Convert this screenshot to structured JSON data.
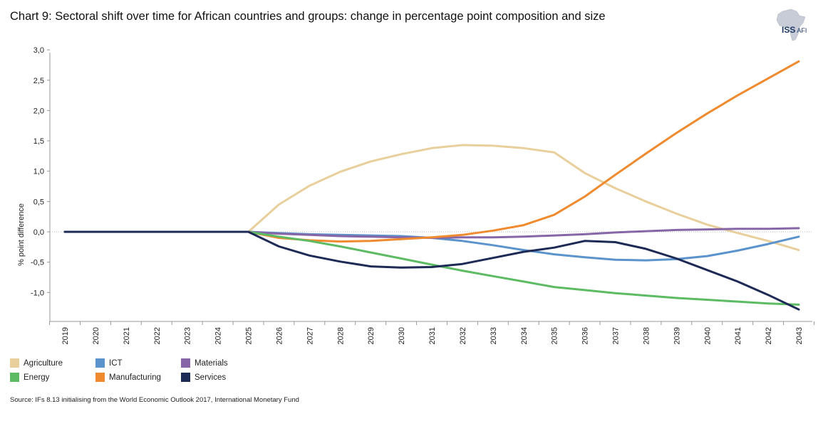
{
  "header": {
    "title": "Chart 9: Sectoral shift over time for African countries and groups: change in percentage point composition and size",
    "logo_main": "ISS",
    "logo_sub": "AFI"
  },
  "source": "Source: IFs 8.13 initialising from the World Economic Outlook 2017, International Monetary Fund",
  "chart_data": {
    "type": "line",
    "title": "Chart 9: Sectoral shift over time for African countries and groups: change in percentage point composition and size",
    "xlabel": "",
    "ylabel": "% point difference",
    "ylim": [
      -1.3,
      3.0
    ],
    "yticks": [
      -1.0,
      -0.5,
      0.0,
      0.5,
      1.0,
      1.5,
      2.0,
      2.5,
      3.0
    ],
    "ytick_labels": [
      "-1,0",
      "-0,5",
      "0,0",
      "0,5",
      "1,0",
      "1,5",
      "2,0",
      "2,5",
      "3,0"
    ],
    "x": [
      "2019",
      "2020",
      "2021",
      "2022",
      "2023",
      "2024",
      "2025",
      "2026",
      "2027",
      "2028",
      "2029",
      "2030",
      "2031",
      "2032",
      "2033",
      "2034",
      "2035",
      "2036",
      "2037",
      "2038",
      "2039",
      "2040",
      "2041",
      "2042",
      "2043"
    ],
    "series": [
      {
        "name": "Agriculture",
        "color": "#e8cf9c",
        "values": [
          0,
          0,
          0,
          0,
          0,
          0,
          0,
          0.45,
          0.76,
          0.99,
          1.16,
          1.28,
          1.38,
          1.43,
          1.42,
          1.38,
          1.31,
          0.97,
          0.72,
          0.5,
          0.3,
          0.12,
          -0.02,
          -0.15,
          -0.3
        ]
      },
      {
        "name": "ICT",
        "color": "#5b93cc",
        "values": [
          0,
          0,
          0,
          0,
          0,
          0,
          0,
          -0.02,
          -0.04,
          -0.05,
          -0.06,
          -0.07,
          -0.1,
          -0.15,
          -0.22,
          -0.3,
          -0.37,
          -0.42,
          -0.46,
          -0.47,
          -0.45,
          -0.4,
          -0.31,
          -0.2,
          -0.08
        ]
      },
      {
        "name": "Materials",
        "color": "#8766a8",
        "values": [
          0,
          0,
          0,
          0,
          0,
          0,
          0,
          -0.03,
          -0.05,
          -0.07,
          -0.08,
          -0.09,
          -0.1,
          -0.09,
          -0.09,
          -0.08,
          -0.06,
          -0.04,
          -0.01,
          0.01,
          0.03,
          0.04,
          0.05,
          0.05,
          0.06
        ]
      },
      {
        "name": "Energy",
        "color": "#5dbb63",
        "values": [
          0,
          0,
          0,
          0,
          0,
          0,
          0,
          -0.08,
          -0.15,
          -0.24,
          -0.34,
          -0.44,
          -0.54,
          -0.64,
          -0.73,
          -0.82,
          -0.91,
          -0.96,
          -1.01,
          -1.05,
          -1.09,
          -1.12,
          -1.15,
          -1.18,
          -1.2
        ]
      },
      {
        "name": "Manufacturing",
        "color": "#ef8a2e",
        "values": [
          0,
          0,
          0,
          0,
          0,
          0,
          0,
          -0.1,
          -0.14,
          -0.16,
          -0.15,
          -0.12,
          -0.09,
          -0.05,
          0.02,
          0.11,
          0.28,
          0.58,
          0.94,
          1.29,
          1.63,
          1.95,
          2.25,
          2.53,
          2.81
        ]
      },
      {
        "name": "Services",
        "color": "#1c2a55",
        "values": [
          0,
          0,
          0,
          0,
          0,
          0,
          0,
          -0.24,
          -0.39,
          -0.49,
          -0.57,
          -0.59,
          -0.58,
          -0.53,
          -0.43,
          -0.33,
          -0.26,
          -0.15,
          -0.17,
          -0.28,
          -0.44,
          -0.63,
          -0.82,
          -1.04,
          -1.28
        ]
      }
    ],
    "legend_position": "bottom-left",
    "grid": false
  },
  "legend": [
    {
      "label": "Agriculture",
      "color": "#e8cf9c"
    },
    {
      "label": "ICT",
      "color": "#5b93cc"
    },
    {
      "label": "Materials",
      "color": "#8766a8"
    },
    {
      "label": "Energy",
      "color": "#5dbb63"
    },
    {
      "label": "Manufacturing",
      "color": "#ef8a2e"
    },
    {
      "label": "Services",
      "color": "#1c2a55"
    }
  ]
}
